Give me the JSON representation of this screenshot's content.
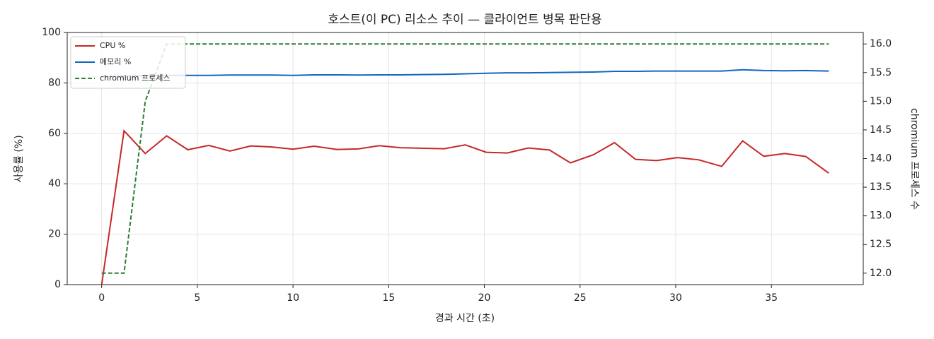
{
  "chart_data": {
    "type": "line",
    "title": "호스트(이 PC) 리소스 추이 — 클라이언트 병목 판단용",
    "x_label": "경과 시간 (초)",
    "y_label": "사용률 (%)",
    "y2_label": "chromium 프로세스 수",
    "x": [
      0,
      1.17,
      2.28,
      3.4,
      4.5,
      5.6,
      6.7,
      7.8,
      8.9,
      10.0,
      11.1,
      12.3,
      13.4,
      14.5,
      15.6,
      16.7,
      17.9,
      19.0,
      20.1,
      21.2,
      22.3,
      23.4,
      24.5,
      25.7,
      26.8,
      27.9,
      29.0,
      30.1,
      31.2,
      32.4,
      33.5,
      34.6,
      35.7,
      36.8,
      38.0
    ],
    "series": [
      {
        "name": "CPU %",
        "color": "#c62828",
        "linestyle": "solid",
        "values": [
          0,
          61,
          52,
          59,
          53.5,
          55.2,
          53,
          55,
          54.6,
          53.7,
          54.9,
          53.6,
          53.8,
          55.1,
          54.3,
          54.1,
          53.9,
          55.4,
          52.5,
          52.2,
          54.2,
          53.4,
          48.3,
          51.5,
          56.3,
          49.7,
          49.2,
          50.4,
          49.5,
          46.9,
          57,
          50.9,
          52,
          50.8,
          44.2
        ]
      },
      {
        "name": "메모리 %",
        "color": "#1565c0",
        "linestyle": "solid",
        "values": [
          82.5,
          82.8,
          82.9,
          83,
          83,
          83,
          83.1,
          83.1,
          83.1,
          83,
          83.2,
          83.2,
          83.1,
          83.2,
          83.2,
          83.3,
          83.4,
          83.6,
          83.8,
          84,
          84,
          84.1,
          84.2,
          84.3,
          84.6,
          84.6,
          84.7,
          84.7,
          84.7,
          84.7,
          85.2,
          84.9,
          84.8,
          84.9,
          84.7
        ]
      },
      {
        "name": "chromium 프로세스",
        "color": "#2e7d32",
        "linestyle": "dashed",
        "axis": "y2",
        "values": [
          12,
          12,
          15,
          16,
          16,
          16,
          16,
          16,
          16,
          16,
          16,
          16,
          16,
          16,
          16,
          16,
          16,
          16,
          16,
          16,
          16,
          16,
          16,
          16,
          16,
          16,
          16,
          16,
          16,
          16,
          16,
          16,
          16,
          16,
          16
        ]
      }
    ],
    "xlim": [
      -1.8,
      39.8
    ],
    "xticks": [
      0,
      5,
      10,
      15,
      20,
      25,
      30,
      35
    ],
    "ylim": [
      0,
      100
    ],
    "yticks": [
      0,
      20,
      40,
      60,
      80,
      100
    ],
    "y2lim": [
      11.8,
      16.2
    ],
    "y2ticks": [
      {
        "value": 12,
        "label": "12.0"
      },
      12.5,
      {
        "value": 13,
        "label": "13.0"
      },
      13.5,
      {
        "value": 14,
        "label": "14.0"
      },
      14.5,
      {
        "value": 15,
        "label": "15.0"
      },
      15.5,
      {
        "value": 16,
        "label": "16.0"
      }
    ],
    "grid": true,
    "legend": "upper-left"
  }
}
